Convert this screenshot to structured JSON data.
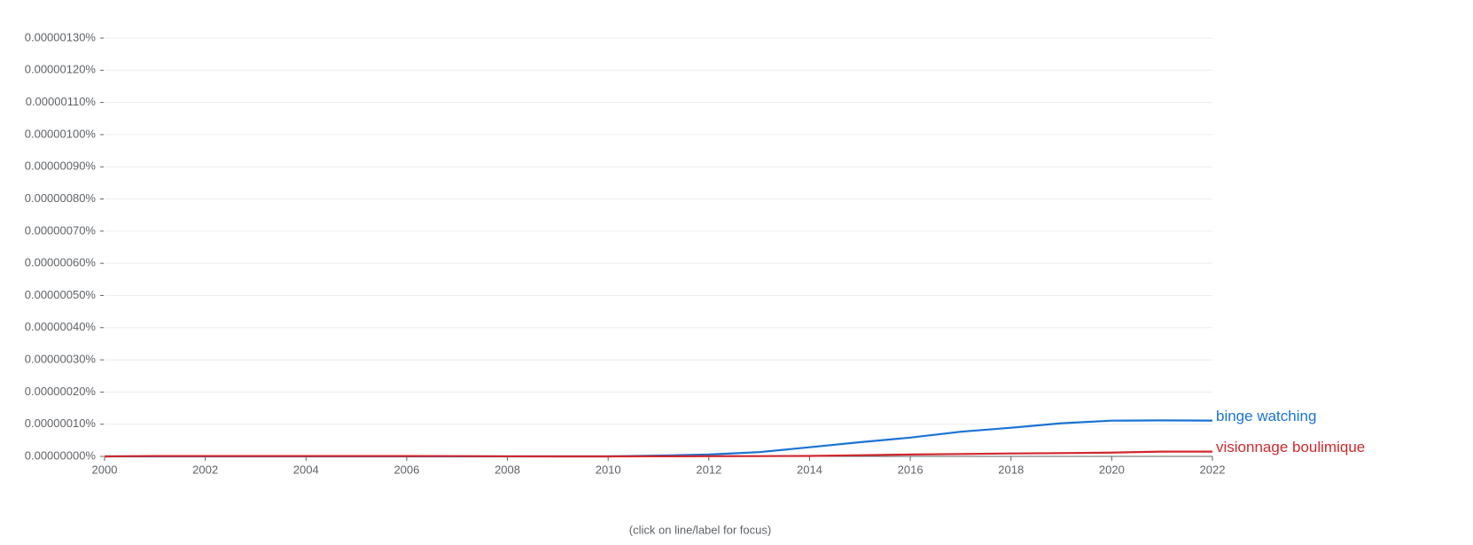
{
  "chart_data": {
    "type": "line",
    "note": "(click on line/label for focus)",
    "x": [
      2000,
      2001,
      2002,
      2003,
      2004,
      2005,
      2006,
      2007,
      2008,
      2009,
      2010,
      2011,
      2012,
      2013,
      2014,
      2015,
      2016,
      2017,
      2018,
      2019,
      2020,
      2021,
      2022
    ],
    "series": [
      {
        "name": "binge watching",
        "color": "#1a73d4",
        "values": [
          0,
          0,
          0,
          0,
          0,
          0,
          0,
          0,
          0,
          0,
          1e-10,
          2.5e-09,
          5.8e-09,
          1.32e-08,
          2.84e-08,
          4.4e-08,
          5.84e-08,
          7.66e-08,
          8.9e-08,
          1.03e-07,
          1.11e-07,
          1.118e-07,
          1.113e-07
        ]
      },
      {
        "name": "visionnage boulimique",
        "color": "#d0282e",
        "values": [
          0,
          1.1e-09,
          1.1e-09,
          1e-09,
          1e-09,
          1e-09,
          1e-09,
          8e-10,
          2e-10,
          1e-10,
          1e-10,
          3e-10,
          6e-10,
          9e-10,
          1.4e-09,
          3.6e-09,
          5.8e-09,
          7.4e-09,
          9.1e-09,
          1.02e-08,
          1.18e-08,
          1.49e-08,
          1.48e-08
        ]
      }
    ],
    "xlim": [
      2000,
      2022
    ],
    "xticks": [
      2000,
      2002,
      2004,
      2006,
      2008,
      2010,
      2012,
      2014,
      2016,
      2018,
      2020,
      2022
    ],
    "ylim": [
      0,
      1.3e-06
    ],
    "yticks": [
      {
        "value": 0,
        "label": "0.00000000%"
      },
      {
        "value": 1e-07,
        "label": "0.00000010%"
      },
      {
        "value": 2e-07,
        "label": "0.00000020%"
      },
      {
        "value": 3e-07,
        "label": "0.00000030%"
      },
      {
        "value": 4e-07,
        "label": "0.00000040%"
      },
      {
        "value": 5e-07,
        "label": "0.00000050%"
      },
      {
        "value": 6e-07,
        "label": "0.00000060%"
      },
      {
        "value": 7e-07,
        "label": "0.00000070%"
      },
      {
        "value": 8e-07,
        "label": "0.00000080%"
      },
      {
        "value": 9e-07,
        "label": "0.00000090%"
      },
      {
        "value": 1e-06,
        "label": "0.00000100%"
      },
      {
        "value": 1.1e-06,
        "label": "0.00000110%"
      },
      {
        "value": 1.2e-06,
        "label": "0.00000120%"
      },
      {
        "value": 1.3e-06,
        "label": "0.00000130%"
      }
    ],
    "grid": true
  }
}
